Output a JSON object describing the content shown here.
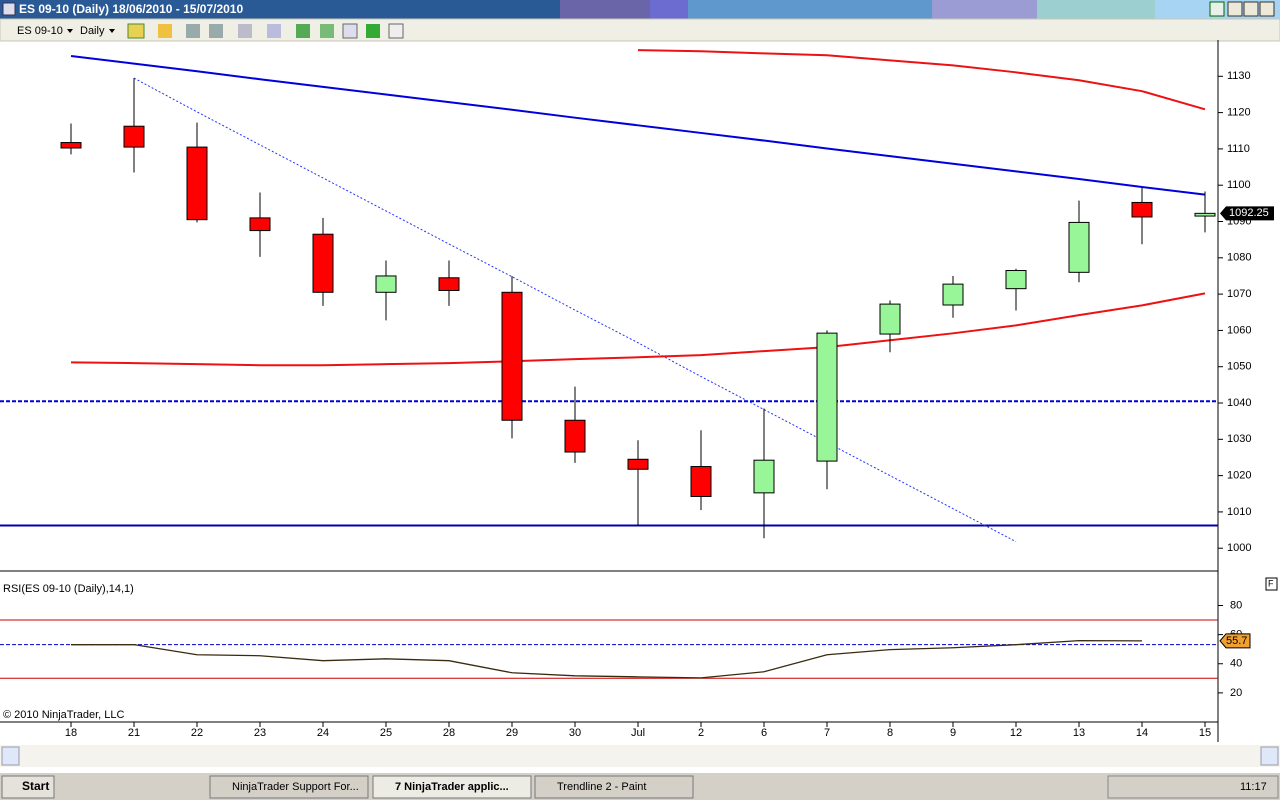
{
  "window": {
    "title": "ES 09-10 (Daily)  18/06/2010 - 15/07/2010",
    "copyright": "© 2010 NinjaTrader, LLC",
    "panel_button": "F"
  },
  "toolbar": {
    "instrument": "ES 09-10",
    "period": "Daily"
  },
  "chart_data": [
    {
      "type": "candlestick",
      "categories": [
        "18",
        "21",
        "22",
        "23",
        "24",
        "25",
        "28",
        "29",
        "30",
        "Jul",
        "2",
        "6",
        "7",
        "8",
        "9",
        "12",
        "13",
        "14",
        "15"
      ],
      "open": [
        1111.75,
        1116.25,
        1110.5,
        1091,
        1086.5,
        1070.5,
        1074.5,
        1070.5,
        1035.25,
        1024.5,
        1022.5,
        1015.25,
        1024,
        1059,
        1067,
        1071.5,
        1076,
        1095.25,
        1091.5
      ],
      "high": [
        1117,
        1129.5,
        1117.25,
        1098,
        1091,
        1079.25,
        1079.25,
        1075,
        1044.5,
        1029.75,
        1032.5,
        1038.5,
        1060,
        1068.25,
        1075,
        1077,
        1095.75,
        1099.25,
        1098.25
      ],
      "low": [
        1108.5,
        1103.5,
        1089.75,
        1080.25,
        1066.75,
        1062.75,
        1066.75,
        1030.25,
        1023.5,
        1006.25,
        1010.5,
        1002.75,
        1016.25,
        1054,
        1063.5,
        1065.5,
        1073.25,
        1083.75,
        1087
      ],
      "close": [
        1110.25,
        1110.5,
        1090.5,
        1087.5,
        1070.5,
        1075,
        1071,
        1035.25,
        1026.5,
        1021.75,
        1014.25,
        1024.25,
        1059.25,
        1067.25,
        1072.75,
        1076.5,
        1089.75,
        1091.25,
        1092.25
      ],
      "up_color": "#98f598",
      "down_color": "#ff0000",
      "ylim": [
        994,
        1140
      ],
      "yticks": [
        1000,
        1010,
        1020,
        1030,
        1040,
        1050,
        1060,
        1070,
        1080,
        1090,
        1100,
        1110,
        1120,
        1130
      ],
      "lines": [
        {
          "color": "#0000dd",
          "width": 2,
          "dashed": false,
          "values": [
            1135.6,
            1133.5,
            1131.4,
            1129.2,
            1127.1,
            1125,
            1122.9,
            1120.8,
            1118.6,
            1116.5,
            1114.4,
            1112.3,
            1110.1,
            1108,
            1105.9,
            1103.8,
            1101.7,
            1099.5,
            1097.4
          ]
        },
        {
          "color": "#2233ff",
          "width": 1,
          "dashed": true,
          "values": [
            null,
            1129.5,
            1120.2,
            1111.1,
            1102,
            1092.9,
            1083.8,
            1074.8,
            1065.6,
            1056.6,
            1047.3,
            1038.2,
            1029.1,
            1020,
            1010.9,
            1001.8,
            null,
            null,
            null
          ]
        },
        {
          "color": "#ee1111",
          "width": 2,
          "dashed": false,
          "values": [
            null,
            null,
            null,
            null,
            null,
            null,
            null,
            null,
            null,
            1137.2,
            1136.9,
            1136.3,
            1135.8,
            1134.4,
            1133,
            1131.1,
            1128.9,
            1125.9,
            1120.9
          ]
        },
        {
          "color": "#ee1111",
          "width": 2,
          "dashed": false,
          "values": [
            1051.2,
            1051,
            1050.7,
            1050.4,
            1050.4,
            1050.7,
            1051,
            1051.5,
            1052.1,
            1052.6,
            1053.2,
            1054.3,
            1055.4,
            1057.3,
            1059.2,
            1061.4,
            1064.2,
            1066.9,
            1070.2
          ]
        }
      ],
      "hlines": [
        {
          "value": 1040.5,
          "color": "#0000dd",
          "width": 2,
          "dashed": true
        },
        {
          "value": 1006.25,
          "color": "#0000aa",
          "width": 2,
          "dashed": false
        }
      ]
    },
    {
      "type": "line",
      "title": "RSI(ES 09-10 (Daily),14,1)",
      "series": [
        {
          "color": "#3a2a10",
          "values": [
            53.1,
            53.1,
            46.2,
            45.5,
            42.1,
            43.4,
            42.1,
            33.8,
            31.7,
            31,
            30.3,
            34.5,
            46.2,
            49.7,
            51,
            53.1,
            55.9,
            55.7,
            null
          ]
        }
      ],
      "ylim": [
        0,
        103
      ],
      "yticks": [
        20,
        40,
        60,
        80
      ],
      "hlines": [
        {
          "value": 70,
          "color": "#cc0000",
          "width": 1,
          "dashed": false
        },
        {
          "value": 30,
          "color": "#cc0000",
          "width": 1,
          "dashed": false
        },
        {
          "value": 53.1,
          "color": "#0000cc",
          "width": 1,
          "dashed": true
        }
      ]
    }
  ],
  "taskbar": {
    "start": "Start",
    "buttons": [
      "NinjaTrader Support For...",
      "7 NinjaTrader applic...",
      "Trendline 2 - Paint"
    ],
    "clock": "11:17"
  }
}
